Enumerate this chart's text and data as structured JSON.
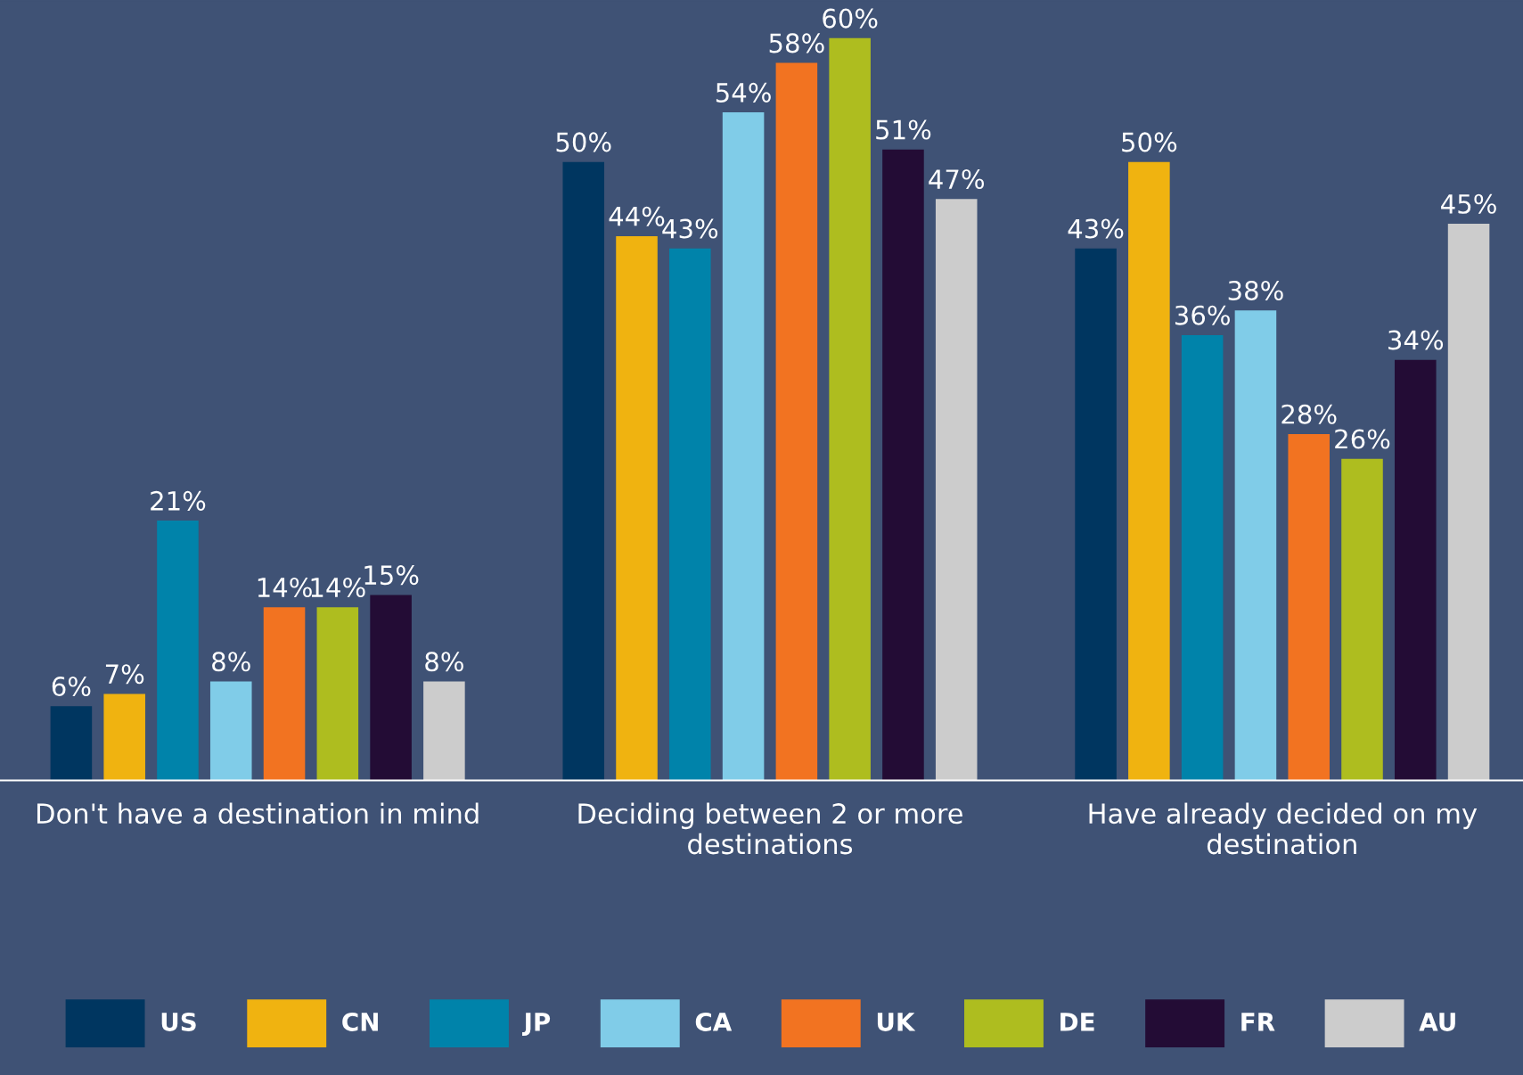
{
  "chart_data": {
    "type": "bar",
    "categories": [
      "Don't have a destination in mind",
      "Deciding between 2 or more destinations",
      "Have already decided on my destination"
    ],
    "series": [
      {
        "name": "US",
        "color": "#003660",
        "values": [
          6,
          50,
          43
        ],
        "value_labels": [
          "6%",
          "50%",
          "43%"
        ]
      },
      {
        "name": "CN",
        "color": "#f0b310",
        "values": [
          7,
          44,
          50
        ],
        "value_labels": [
          "7%",
          "44%",
          "50%"
        ]
      },
      {
        "name": "JP",
        "color": "#0083aa",
        "values": [
          21,
          43,
          36
        ],
        "value_labels": [
          "21%",
          "43%",
          "36%"
        ]
      },
      {
        "name": "CA",
        "color": "#80cce8",
        "values": [
          8,
          54,
          38
        ],
        "value_labels": [
          "8%",
          "54%",
          "38%"
        ]
      },
      {
        "name": "UK",
        "color": "#f27321",
        "values": [
          14,
          58,
          28
        ],
        "value_labels": [
          "14%",
          "58%",
          "28%"
        ]
      },
      {
        "name": "DE",
        "color": "#aebd1f",
        "values": [
          14,
          60,
          26
        ],
        "value_labels": [
          "14%",
          "60%",
          "26%"
        ]
      },
      {
        "name": "FR",
        "color": "#230c35",
        "values": [
          15,
          51,
          34
        ],
        "value_labels": [
          "15%",
          "51%",
          "34%"
        ]
      },
      {
        "name": "AU",
        "color": "#cccccc",
        "values": [
          8,
          47,
          45
        ],
        "value_labels": [
          "8%",
          "47%",
          "45%"
        ]
      }
    ],
    "grid": false,
    "legend": "bottom"
  }
}
